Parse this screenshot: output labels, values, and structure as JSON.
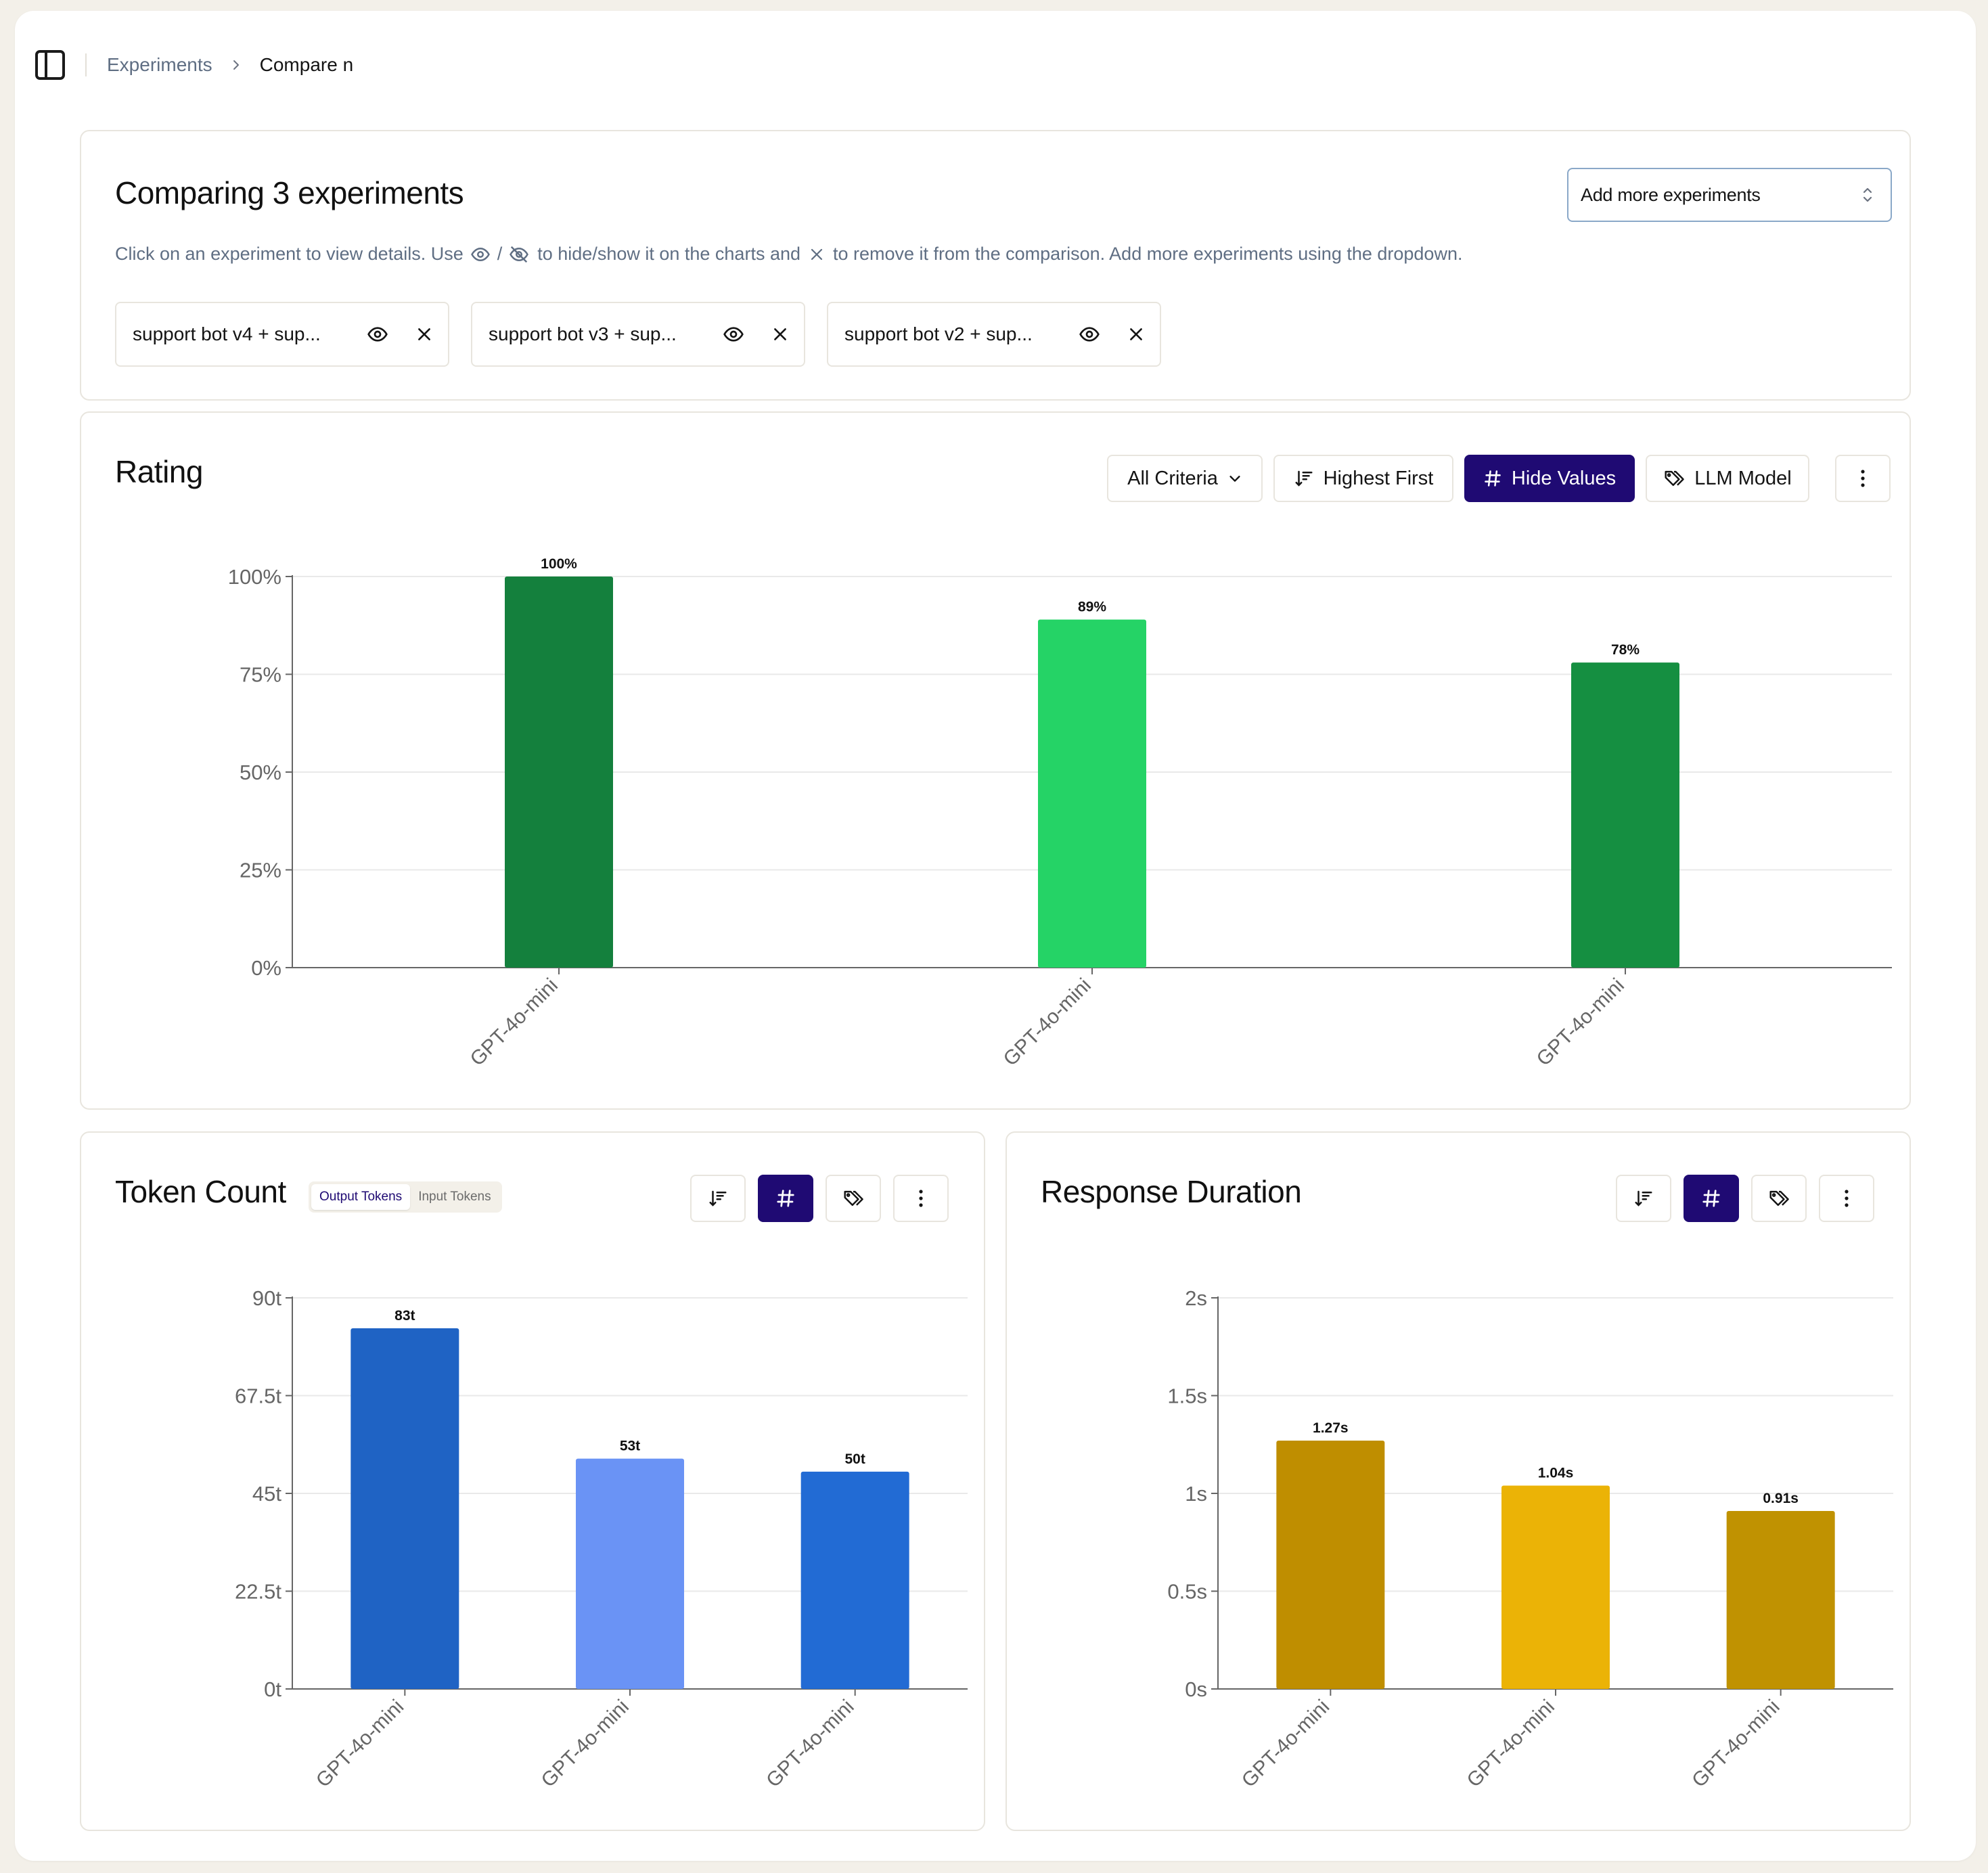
{
  "breadcrumb": {
    "parent": "Experiments",
    "current": "Compare n"
  },
  "compare": {
    "title": "Comparing 3 experiments",
    "hint_1": "Click on an experiment to view details. Use",
    "hint_sep": "/",
    "hint_2": "to hide/show it on the charts and",
    "hint_3": "to remove it from the comparison. Add more experiments using the dropdown.",
    "add_more": "Add more experiments",
    "experiments": [
      {
        "label": "support bot v4 + sup..."
      },
      {
        "label": "support bot v3 + sup..."
      },
      {
        "label": "support bot v2 + sup..."
      }
    ]
  },
  "rating": {
    "title": "Rating",
    "criteria": "All Criteria",
    "sort": "Highest First",
    "hide_values": "Hide Values",
    "group_by": "LLM Model"
  },
  "token_count": {
    "title": "Token Count",
    "output_tokens": "Output Tokens",
    "input_tokens": "Input Tokens"
  },
  "response_duration": {
    "title": "Response Duration"
  },
  "icons": {
    "sidebar": "sidebar-toggle-icon",
    "chevron": "chevron-right-icon",
    "eye": "eye-icon",
    "eye_off": "eye-off-icon",
    "close": "close-icon",
    "updown": "chevron-up-down-icon",
    "sort": "sort-desc-icon",
    "hash": "hash-icon",
    "tags": "tags-icon",
    "more": "more-vertical-icon"
  },
  "colors": {
    "accent": "#1f0a73"
  },
  "chart_data": [
    {
      "type": "bar",
      "title": "Rating",
      "categories": [
        "GPT-4o-mini",
        "GPT-4o-mini",
        "GPT-4o-mini"
      ],
      "values": [
        100,
        89,
        78
      ],
      "value_labels": [
        "100%",
        "89%",
        "78%"
      ],
      "colors": [
        "#14803d",
        "#25d366",
        "#158f41"
      ],
      "yticks": [
        "0%",
        "25%",
        "50%",
        "75%",
        "100%"
      ],
      "ylim": [
        0,
        100
      ],
      "grid": true
    },
    {
      "type": "bar",
      "title": "Token Count",
      "categories": [
        "GPT-4o-mini",
        "GPT-4o-mini",
        "GPT-4o-mini"
      ],
      "values": [
        83,
        53,
        50
      ],
      "value_labels": [
        "83t",
        "53t",
        "50t"
      ],
      "colors": [
        "#1f63c4",
        "#6a93f5",
        "#226bd4"
      ],
      "yticks": [
        "0t",
        "22.5t",
        "45t",
        "67.5t",
        "90t"
      ],
      "ylim": [
        0,
        90
      ],
      "grid": true
    },
    {
      "type": "bar",
      "title": "Response Duration",
      "categories": [
        "GPT-4o-mini",
        "GPT-4o-mini",
        "GPT-4o-mini"
      ],
      "values": [
        1.27,
        1.04,
        0.91
      ],
      "value_labels": [
        "1.27s",
        "1.04s",
        "0.91s"
      ],
      "colors": [
        "#bf8e00",
        "#ebb306",
        "#c09201"
      ],
      "yticks": [
        "0s",
        "0.5s",
        "1s",
        "1.5s",
        "2s"
      ],
      "ylim": [
        0,
        2
      ],
      "grid": true
    }
  ]
}
